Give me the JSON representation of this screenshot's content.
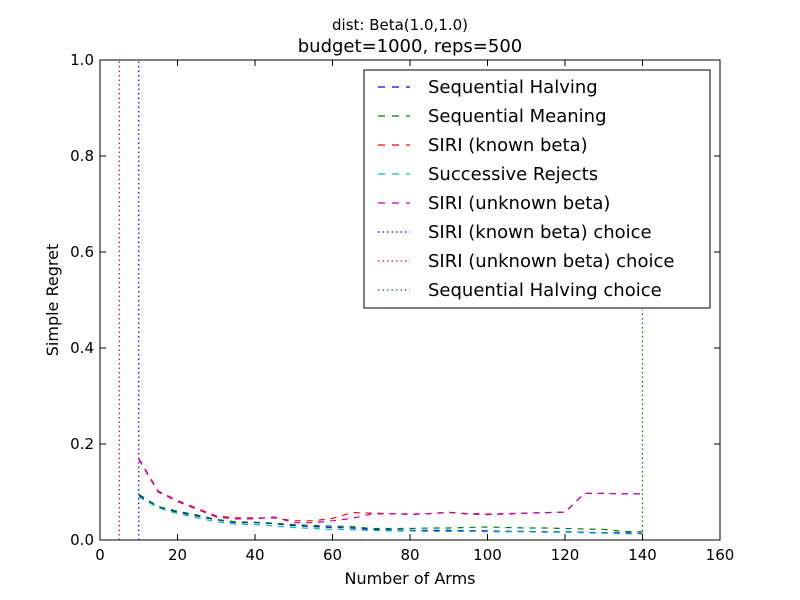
{
  "chart_data": {
    "type": "line",
    "suptitle": "dist: Beta(1.0,1.0)",
    "title": "budget=1000, reps=500",
    "xlabel": "Number of Arms",
    "ylabel": "Simple Regret",
    "xlim": [
      0,
      160
    ],
    "ylim": [
      0,
      1.0
    ],
    "xticks": [
      0,
      20,
      40,
      60,
      80,
      100,
      120,
      140,
      160
    ],
    "yticks": [
      0.0,
      0.2,
      0.4,
      0.6,
      0.8,
      1.0
    ],
    "xtick_labels": [
      "0",
      "20",
      "40",
      "60",
      "80",
      "100",
      "120",
      "140",
      "160"
    ],
    "ytick_labels": [
      "0.0",
      "0.2",
      "0.4",
      "0.6",
      "0.8",
      "1.0"
    ],
    "grid": false,
    "legend_position": "top-right",
    "x": [
      10,
      15,
      20,
      25,
      30,
      35,
      40,
      45,
      50,
      55,
      60,
      65,
      70,
      75,
      80,
      85,
      90,
      95,
      100,
      105,
      110,
      115,
      120,
      125,
      130,
      135,
      140
    ],
    "series": [
      {
        "name": "Sequential Halving",
        "color": "#0000ff",
        "style": "dashed",
        "values": [
          0.093,
          0.068,
          0.058,
          0.05,
          0.042,
          0.036,
          0.036,
          0.034,
          0.03,
          0.028,
          0.026,
          0.025,
          0.022,
          0.021,
          0.02,
          0.02,
          0.02,
          0.019,
          0.019,
          0.018,
          0.018,
          0.017,
          0.017,
          0.016,
          0.015,
          0.015,
          0.014
        ]
      },
      {
        "name": "Sequential Meaning",
        "color": "#008000",
        "style": "dashed",
        "values": [
          0.095,
          0.07,
          0.06,
          0.052,
          0.043,
          0.038,
          0.037,
          0.035,
          0.032,
          0.03,
          0.029,
          0.028,
          0.024,
          0.024,
          0.024,
          0.025,
          0.025,
          0.026,
          0.027,
          0.026,
          0.025,
          0.025,
          0.024,
          0.023,
          0.022,
          0.018,
          0.017
        ]
      },
      {
        "name": "SIRI (known beta)",
        "color": "#ff0000",
        "style": "dashed",
        "values": [
          0.17,
          0.102,
          0.082,
          0.066,
          0.05,
          0.046,
          0.046,
          0.046,
          0.04,
          0.04,
          0.045,
          0.057,
          0.056,
          0.055,
          0.054,
          0.055,
          0.057,
          0.055,
          0.054,
          0.055,
          0.056,
          0.057,
          0.058,
          0.097,
          0.097,
          0.096,
          0.096
        ]
      },
      {
        "name": "Successive Rejects",
        "color": "#00bfbf",
        "style": "dashed",
        "values": [
          0.09,
          0.067,
          0.055,
          0.046,
          0.038,
          0.033,
          0.032,
          0.029,
          0.026,
          0.024,
          0.022,
          0.021,
          0.02,
          0.019,
          0.019,
          0.018,
          0.018,
          0.018,
          0.017,
          0.017,
          0.017,
          0.016,
          0.016,
          0.015,
          0.014,
          0.013,
          0.013
        ]
      },
      {
        "name": "SIRI (unknown beta)",
        "color": "#bf00bf",
        "style": "dashed",
        "values": [
          0.168,
          0.1,
          0.08,
          0.064,
          0.048,
          0.044,
          0.044,
          0.048,
          0.036,
          0.036,
          0.04,
          0.045,
          0.054,
          0.055,
          0.053,
          0.055,
          0.058,
          0.054,
          0.053,
          0.054,
          0.056,
          0.057,
          0.058,
          0.097,
          0.097,
          0.096,
          0.096
        ]
      }
    ],
    "vlines": [
      {
        "name": "SIRI (known beta) choice",
        "color": "#0000ff",
        "style": "dotted",
        "x": 10,
        "y_top": 1.0
      },
      {
        "name": "SIRI (unknown beta) choice",
        "color": "#ff0000",
        "style": "dotted",
        "x": 5,
        "y_top": 1.0
      },
      {
        "name": "Sequential Halving choice",
        "color": "#008000",
        "style": "dotted",
        "x": 140,
        "y_top": 0.48
      }
    ]
  }
}
